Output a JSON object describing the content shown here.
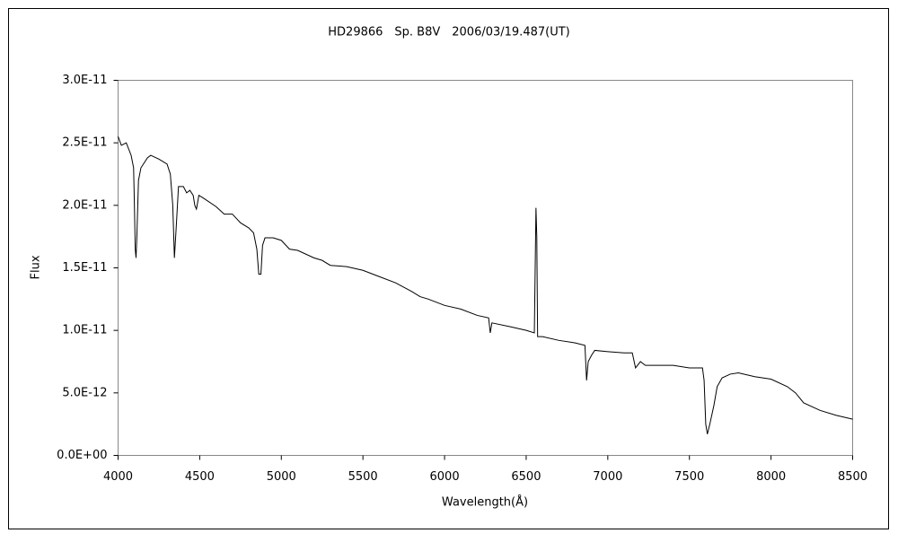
{
  "chart_data": {
    "type": "line",
    "title": "HD29866　Sp. B8V　2006/03/19.487(UT)",
    "x_label": "Wavelength(Å)",
    "y_label": "Flux",
    "color": "#000000",
    "x": [
      4000,
      4020,
      4050,
      4080,
      4095,
      4100,
      4105,
      4110,
      4115,
      4125,
      4140,
      4180,
      4200,
      4250,
      4300,
      4320,
      4335,
      4345,
      4355,
      4370,
      4400,
      4420,
      4440,
      4460,
      4470,
      4480,
      4495,
      4520,
      4600,
      4650,
      4700,
      4750,
      4800,
      4830,
      4850,
      4862,
      4875,
      4885,
      4900,
      4950,
      5000,
      5050,
      5100,
      5200,
      5250,
      5300,
      5400,
      5500,
      5600,
      5700,
      5800,
      5850,
      5900,
      6000,
      6100,
      6200,
      6270,
      6280,
      6290,
      6400,
      6500,
      6550,
      6560,
      6565,
      6570,
      6600,
      6700,
      6800,
      6860,
      6870,
      6880,
      6900,
      6920,
      7000,
      7100,
      7150,
      7170,
      7200,
      7230,
      7300,
      7400,
      7500,
      7580,
      7590,
      7600,
      7610,
      7625,
      7650,
      7670,
      7700,
      7750,
      7800,
      7900,
      8000,
      8100,
      8150,
      8200,
      8300,
      8400,
      8500
    ],
    "values": [
      2.55e-11,
      2.48e-11,
      2.5e-11,
      2.4e-11,
      2.3e-11,
      2e-11,
      1.65e-11,
      1.58e-11,
      1.75e-11,
      2.2e-11,
      2.3e-11,
      2.38e-11,
      2.4e-11,
      2.37e-11,
      2.33e-11,
      2.25e-11,
      2e-11,
      1.58e-11,
      1.8e-11,
      2.15e-11,
      2.15e-11,
      2.1e-11,
      2.12e-11,
      2.08e-11,
      2e-11,
      1.97e-11,
      2.08e-11,
      2.06e-11,
      1.99e-11,
      1.93e-11,
      1.93e-11,
      1.86e-11,
      1.82e-11,
      1.78e-11,
      1.65e-11,
      1.45e-11,
      1.45e-11,
      1.68e-11,
      1.74e-11,
      1.74e-11,
      1.72e-11,
      1.65e-11,
      1.64e-11,
      1.58e-11,
      1.56e-11,
      1.52e-11,
      1.51e-11,
      1.48e-11,
      1.43e-11,
      1.38e-11,
      1.31e-11,
      1.27e-11,
      1.25e-11,
      1.2e-11,
      1.17e-11,
      1.12e-11,
      1.1e-11,
      9.8e-12,
      1.06e-11,
      1.03e-11,
      1e-11,
      9.8e-12,
      1.98e-11,
      1.75e-11,
      9.5e-12,
      9.5e-12,
      9.2e-12,
      9e-12,
      8.8e-12,
      6e-12,
      7.5e-12,
      8e-12,
      8.4e-12,
      8.3e-12,
      8.2e-12,
      8.2e-12,
      7e-12,
      7.5e-12,
      7.2e-12,
      7.2e-12,
      7.2e-12,
      7e-12,
      7e-12,
      6e-12,
      2.5e-12,
      1.7e-12,
      2.5e-12,
      4e-12,
      5.5e-12,
      6.2e-12,
      6.5e-12,
      6.6e-12,
      6.3e-12,
      6.1e-12,
      5.5e-12,
      5e-12,
      4.2e-12,
      3.6e-12,
      3.2e-12,
      2.9e-12
    ],
    "xlim": [
      4000,
      8500
    ],
    "xticks": [
      4000,
      4500,
      5000,
      5500,
      6000,
      6500,
      7000,
      7500,
      8000,
      8500
    ],
    "ylim": [
      0,
      3e-11
    ],
    "yticks": [
      {
        "value": 0,
        "label": "0.0E+00"
      },
      {
        "value": 5e-12,
        "label": "5.0E-12"
      },
      {
        "value": 1e-11,
        "label": "1.0E-11"
      },
      {
        "value": 1.5e-11,
        "label": "1.5E-11"
      },
      {
        "value": 2e-11,
        "label": "2.0E-11"
      },
      {
        "value": 2.5e-11,
        "label": "2.5E-11"
      },
      {
        "value": 3e-11,
        "label": "3.0E-11"
      }
    ]
  }
}
